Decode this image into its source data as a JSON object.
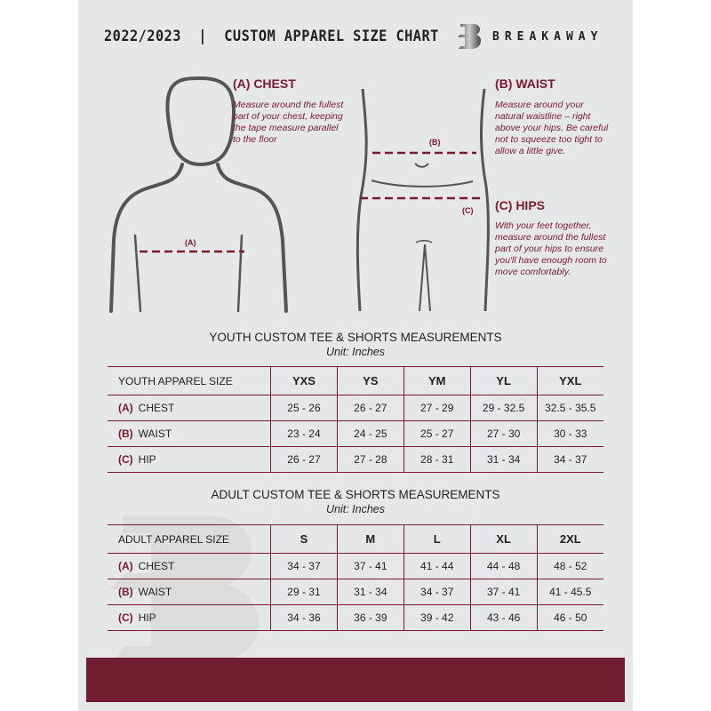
{
  "header": {
    "title": "2022/2023  |  CUSTOM APPAREL SIZE CHART",
    "brand": "BREAKAWAY"
  },
  "guide": {
    "chest": {
      "heading": "(A) CHEST",
      "text": "Measure around the fullest part of your chest, keeping the tape measure parallel to the floor",
      "marker": "(A)"
    },
    "waist": {
      "heading": "(B) WAIST",
      "text": "Measure around your natural waistline – right above your hips. Be careful not to squeeze too tight to allow a little give.",
      "marker": "(B)"
    },
    "hips": {
      "heading": "(C) HIPS",
      "text": "With your feet together, measure around the fullest part of your hips to ensure you'll have enough room to move comfortably.",
      "marker": "(C)"
    }
  },
  "youth": {
    "title": "YOUTH CUSTOM TEE & SHORTS MEASUREMENTS",
    "unit": "Unit: Inches",
    "size_label": "YOUTH APPAREL SIZE",
    "sizes": [
      "YXS",
      "YS",
      "YM",
      "YL",
      "YXL"
    ],
    "rows": [
      {
        "code": "(A)",
        "name": "CHEST",
        "values": [
          "25 - 26",
          "26 - 27",
          "27 - 29",
          "29 - 32.5",
          "32.5 - 35.5"
        ]
      },
      {
        "code": "(B)",
        "name": "WAIST",
        "values": [
          "23 - 24",
          "24 - 25",
          "25 - 27",
          "27 - 30",
          "30 - 33"
        ]
      },
      {
        "code": "(C)",
        "name": "HIP",
        "values": [
          "26 - 27",
          "27 - 28",
          "28 - 31",
          "31 - 34",
          "34 - 37"
        ]
      }
    ]
  },
  "adult": {
    "title": "ADULT CUSTOM TEE & SHORTS MEASUREMENTS",
    "unit": "Unit: Inches",
    "size_label": "ADULT APPAREL SIZE",
    "sizes": [
      "S",
      "M",
      "L",
      "XL",
      "2XL"
    ],
    "rows": [
      {
        "code": "(A)",
        "name": "CHEST",
        "values": [
          "34 - 37",
          "37 - 41",
          "41 - 44",
          "44 - 48",
          "48 - 52"
        ]
      },
      {
        "code": "(B)",
        "name": "WAIST",
        "values": [
          "29 - 31",
          "31 - 34",
          "34 - 37",
          "37 - 41",
          "41 - 45.5"
        ]
      },
      {
        "code": "(C)",
        "name": "HIP",
        "values": [
          "34 - 36",
          "36 - 39",
          "39 - 42",
          "43 - 46",
          "46 - 50"
        ]
      }
    ]
  },
  "colors": {
    "accent": "#7a1a30",
    "footer": "#721c31",
    "background": "#e6e7e8"
  }
}
